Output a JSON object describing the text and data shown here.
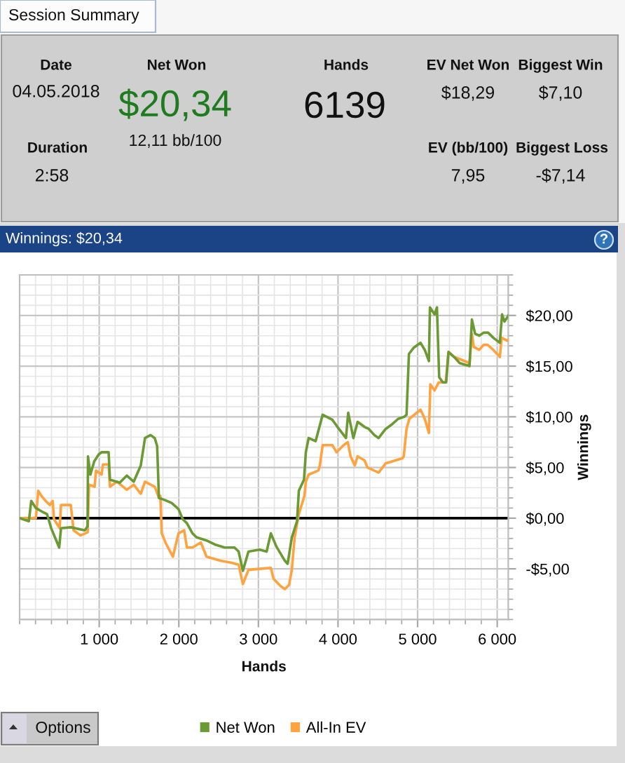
{
  "chart_data": [
    {
      "type": "other",
      "title": "Session Summary",
      "annotations": [
        "Date",
        "04.05.2018",
        "Duration",
        "2:58",
        "Net Won",
        "$20,34",
        "12,11 bb/100",
        "Hands",
        "6139",
        "EV Net Won",
        "$18,29",
        "EV (bb/100)",
        "7,95",
        "Biggest Win",
        "$7,10",
        "Biggest Loss",
        "-$7,14"
      ]
    },
    {
      "type": "line",
      "title": "Winnings: $20,34",
      "xlabel": "Hands",
      "ylabel": "Winnings",
      "xlim": [
        0,
        6139
      ],
      "ylim": [
        -10,
        24
      ],
      "xticks": [
        {
          "value": 1000,
          "label": "1 000"
        },
        {
          "value": 2000,
          "label": "2 000"
        },
        {
          "value": 3000,
          "label": "3 000"
        },
        {
          "value": 4000,
          "label": "4 000"
        },
        {
          "value": 5000,
          "label": "5 000"
        },
        {
          "value": 6000,
          "label": "6 000"
        }
      ],
      "yticks": [
        {
          "value": -5,
          "label": "-$5,00"
        },
        {
          "value": 0,
          "label": "$0,00"
        },
        {
          "value": 5,
          "label": "$5,00"
        },
        {
          "value": 10,
          "label": "$10,00"
        },
        {
          "value": 15,
          "label": "$15,00"
        },
        {
          "value": 20,
          "label": "$20,00"
        }
      ],
      "grid": true,
      "legend": "bottom",
      "ref_lines": [
        {
          "axis": "y",
          "value": 0,
          "color": "#000000"
        }
      ],
      "annotations": [
        "?",
        "Options"
      ],
      "series": [
        {
          "name": "Net Won",
          "color": "#6b9a35",
          "x": [
            0,
            116,
            146,
            204,
            292,
            344,
            397,
            497,
            520,
            643,
            819,
            854,
            859,
            889,
            937,
            995,
            1030,
            1118,
            1135,
            1258,
            1346,
            1434,
            1522,
            1575,
            1645,
            1698,
            1728,
            1750,
            1821,
            1909,
            1996,
            2049,
            2102,
            2172,
            2225,
            2348,
            2453,
            2576,
            2699,
            2752,
            2805,
            2875,
            3015,
            3103,
            3156,
            3226,
            3332,
            3367,
            3420,
            3485,
            3508,
            3573,
            3596,
            3631,
            3719,
            3807,
            3930,
            4012,
            4100,
            4128,
            4193,
            4246,
            4334,
            4387,
            4457,
            4510,
            4598,
            4685,
            4756,
            4831,
            4861,
            4891,
            4949,
            5037,
            5090,
            5142,
            5155,
            5213,
            5243,
            5271,
            5318,
            5359,
            5388,
            5459,
            5529,
            5652,
            5682,
            5722,
            5775,
            5828,
            5886,
            5951,
            6033,
            6061,
            6091,
            6126,
            6139
          ],
          "values": [
            0,
            -0.3,
            1.7,
            1.0,
            0.6,
            0.4,
            -1.0,
            -2.9,
            -1.0,
            -0.9,
            -1.2,
            -0.8,
            6.1,
            4.3,
            5.6,
            6.3,
            6.5,
            6.5,
            3.8,
            3.5,
            4.2,
            3.6,
            5.2,
            7.9,
            8.2,
            7.9,
            7.1,
            2.0,
            1.8,
            1.5,
            0.9,
            -0.1,
            -0.5,
            -1.5,
            -1.9,
            -2.2,
            -2.6,
            -2.9,
            -2.9,
            -3.3,
            -5.2,
            -3.3,
            -3.1,
            -3.3,
            -1.5,
            -2.8,
            -4.2,
            -4.5,
            -1.9,
            -0.3,
            2.7,
            3.8,
            6.5,
            7.9,
            7.6,
            10.2,
            9.7,
            8.8,
            7.9,
            10.4,
            7.9,
            9.5,
            9.0,
            8.8,
            8.2,
            7.9,
            8.8,
            9.3,
            9.8,
            10.0,
            10.2,
            16.2,
            16.8,
            17.3,
            16.6,
            15.5,
            20.8,
            20.1,
            20.8,
            13.9,
            13.4,
            13.4,
            16.4,
            15.9,
            15.3,
            15.0,
            19.6,
            18.2,
            18.0,
            18.3,
            18.3,
            17.8,
            17.3,
            20.1,
            19.4,
            19.8,
            20.0
          ]
        },
        {
          "name": "All-In EV",
          "color": "#ffa23f",
          "x": [
            0,
            204,
            234,
            274,
            327,
            380,
            415,
            432,
            503,
            520,
            643,
            678,
            766,
            854,
            872,
            942,
            960,
            1030,
            1047,
            1118,
            1135,
            1223,
            1346,
            1434,
            1522,
            1575,
            1698,
            1750,
            1768,
            1786,
            1838,
            1926,
            1996,
            2067,
            2102,
            2172,
            2277,
            2348,
            2523,
            2664,
            2752,
            2805,
            2875,
            3015,
            3156,
            3191,
            3279,
            3332,
            3385,
            3420,
            3455,
            3508,
            3578,
            3596,
            3631,
            3754,
            3772,
            3807,
            3930,
            3982,
            4070,
            4123,
            4158,
            4211,
            4246,
            4334,
            4369,
            4510,
            4598,
            4809,
            4826,
            4861,
            4896,
            5037,
            5090,
            5142,
            5160,
            5213,
            5266,
            5354,
            5388,
            5459,
            5529,
            5652,
            5682,
            5705,
            5775,
            5828,
            5880,
            5951,
            6033,
            6056,
            6126,
            6139
          ],
          "values": [
            0,
            0,
            2.7,
            2.2,
            1.7,
            1.3,
            1.7,
            -0.1,
            -1.0,
            1.3,
            1.3,
            -1.2,
            -1.7,
            -1.4,
            3.3,
            3.1,
            4.7,
            4.3,
            5.3,
            5.3,
            3.1,
            3.6,
            2.8,
            3.3,
            2.4,
            3.6,
            3.1,
            2.0,
            2.2,
            -1.5,
            -2.5,
            -3.8,
            -1.5,
            -1.2,
            -2.9,
            -2.9,
            -2.4,
            -3.8,
            -4.2,
            -4.4,
            -4.6,
            -6.5,
            -5.1,
            -5.0,
            -4.9,
            -6.0,
            -6.7,
            -7.0,
            -6.6,
            -5.1,
            -1.9,
            0.4,
            2.2,
            3.6,
            4.3,
            4.7,
            5.2,
            7.2,
            7.2,
            6.5,
            7.2,
            7.5,
            6.1,
            5.2,
            6.1,
            5.7,
            5.0,
            4.5,
            5.4,
            5.9,
            6.1,
            8.8,
            9.8,
            10.7,
            9.8,
            8.4,
            13.2,
            12.6,
            13.4,
            13.4,
            16.4,
            15.9,
            15.7,
            15.3,
            18.2,
            16.9,
            16.6,
            17.1,
            17.1,
            16.6,
            15.9,
            17.8,
            17.5,
            17.6
          ]
        }
      ]
    }
  ]
}
